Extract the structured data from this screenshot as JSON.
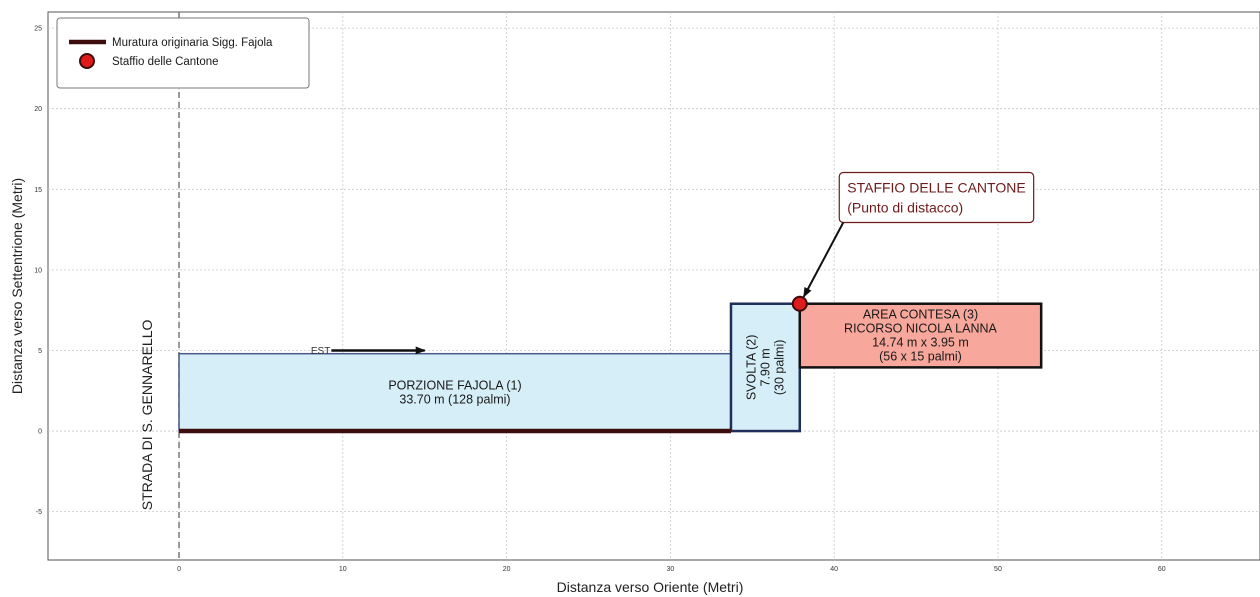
{
  "chart_data": {
    "type": "diagram",
    "xlabel": "Distanza verso Oriente (Metri)",
    "ylabel": "Distanza verso Settentrione (Metri)",
    "xlim": [
      -8,
      66
    ],
    "ylim": [
      -8,
      26
    ],
    "x_ticks": [
      0,
      10,
      20,
      30,
      40,
      50,
      60
    ],
    "y_ticks": [
      -5,
      0,
      5,
      10,
      15,
      20,
      25
    ],
    "grid": true,
    "legend": {
      "placement": "top-left",
      "entries": [
        {
          "label": "Muratura originaria Sigg. Fajola",
          "marker": "line",
          "color": "#3d0c0c"
        },
        {
          "label": "Staffio delle Cantone",
          "marker": "circle",
          "color": "#e01b1b"
        }
      ]
    },
    "wall_line": {
      "x": [
        0,
        33.7
      ],
      "y": [
        0,
        0
      ],
      "color": "#3d0c0c"
    },
    "road": {
      "x": 0,
      "label": "STRADA DI S. GENNARELLO"
    },
    "regions": [
      {
        "name": "porzione-fajola",
        "x0": 0,
        "y0": 0,
        "x1": 33.7,
        "y1": 4.8,
        "fill": "#d6eef8",
        "stroke": "#4a5a8a",
        "lines": [
          "PORZIONE FAJOLA (1)",
          "33.70 m (128 palmi)"
        ]
      },
      {
        "name": "svolta",
        "x0": 33.7,
        "y0": 0,
        "x1": 37.9,
        "y1": 7.9,
        "fill": "#d6eef8",
        "stroke": "#1f2e5a",
        "lines": [
          "SVOLTA (2)",
          "7.90 m",
          "(30 palmi)"
        ],
        "rotated": true
      },
      {
        "name": "area-contesa",
        "x0": 37.9,
        "y0": 3.95,
        "x1": 52.64,
        "y1": 7.9,
        "fill": "#f7a79b",
        "stroke": "#111111",
        "lines": [
          "AREA CONTESA (3)",
          "RICORSO NICOLA LANNA",
          "14.74 m x 3.95 m",
          "(56 x 15 palmi)"
        ]
      }
    ],
    "point": {
      "x": 37.9,
      "y": 7.9,
      "color": "#e01b1b",
      "name": "Staffio delle Cantone"
    },
    "annotation": {
      "lines": [
        "STAFFIO DELLE CANTONE",
        "(Punto di distacco)"
      ],
      "text_anchor_x": 40.8,
      "text_anchor_y": 14.8,
      "arrow_to": [
        37.9,
        7.9
      ]
    },
    "direction_arrow": {
      "label": "EST",
      "x_from": 9.3,
      "x_to": 15,
      "y": 5
    }
  }
}
